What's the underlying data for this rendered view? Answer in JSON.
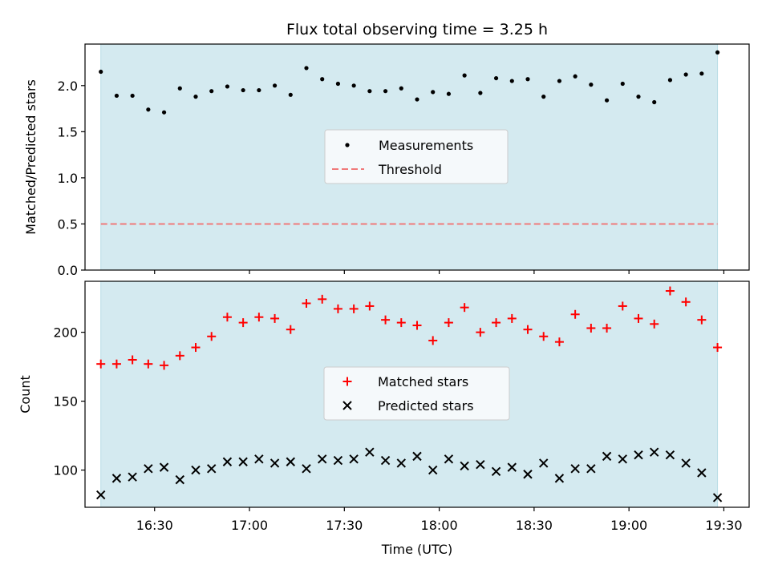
{
  "title": "Flux total observing time = 3.25 h",
  "colors": {
    "observing_span": "#d4eaf0",
    "observing_span_edge": "#b8dde6",
    "measurement": "#000000",
    "threshold": "#f07a7a",
    "matched": "#ff0000",
    "predicted": "#000000",
    "legend_bg": "#f5f9fb",
    "legend_edge": "#cccccc"
  },
  "chart_data": [
    {
      "type": "scatter",
      "name": "ratio-panel",
      "ylabel": "Matched/Predicted stars",
      "xlabel": "",
      "ylim": [
        0,
        2.45
      ],
      "yticks": [
        0.0,
        0.5,
        1.0,
        1.5,
        2.0
      ],
      "ytick_labels": [
        "0.0",
        "0.5",
        "1.0",
        "1.5",
        "2.0"
      ],
      "legend_position": "center",
      "observing_span": [
        "16:13",
        "19:28"
      ],
      "series": [
        {
          "name": "Measurements",
          "marker": "dot",
          "x": [
            "16:13",
            "16:18",
            "16:23",
            "16:28",
            "16:33",
            "16:38",
            "16:43",
            "16:48",
            "16:53",
            "16:58",
            "17:03",
            "17:08",
            "17:13",
            "17:18",
            "17:23",
            "17:28",
            "17:33",
            "17:38",
            "17:43",
            "17:48",
            "17:53",
            "17:58",
            "18:03",
            "18:08",
            "18:13",
            "18:18",
            "18:23",
            "18:28",
            "18:33",
            "18:38",
            "18:43",
            "18:48",
            "18:53",
            "18:58",
            "19:03",
            "19:08",
            "19:13",
            "19:18",
            "19:23",
            "19:28"
          ],
          "y": [
            2.15,
            1.89,
            1.89,
            1.74,
            1.71,
            1.97,
            1.88,
            1.94,
            1.99,
            1.95,
            1.95,
            2.0,
            1.9,
            2.19,
            2.07,
            2.02,
            2.0,
            1.94,
            1.94,
            1.97,
            1.85,
            1.93,
            1.91,
            2.11,
            1.92,
            2.08,
            2.05,
            2.07,
            1.88,
            2.05,
            2.1,
            2.01,
            1.84,
            2.02,
            1.88,
            1.82,
            2.06,
            2.12,
            2.13,
            2.36
          ]
        },
        {
          "name": "Threshold",
          "marker": "dashed-line",
          "y": 0.5
        }
      ]
    },
    {
      "type": "scatter",
      "name": "count-panel",
      "ylabel": "Count",
      "xlabel": "Time (UTC)",
      "ylim": [
        73,
        237
      ],
      "yticks": [
        100,
        150,
        200
      ],
      "ytick_labels": [
        "100",
        "150",
        "200"
      ],
      "xticks": [
        "16:30",
        "17:00",
        "17:30",
        "18:00",
        "18:30",
        "19:00",
        "19:30"
      ],
      "xlim": [
        "16:08",
        "19:38"
      ],
      "legend_position": "center",
      "observing_span": [
        "16:13",
        "19:28"
      ],
      "series": [
        {
          "name": "Matched stars",
          "marker": "plus",
          "x": [
            "16:13",
            "16:18",
            "16:23",
            "16:28",
            "16:33",
            "16:38",
            "16:43",
            "16:48",
            "16:53",
            "16:58",
            "17:03",
            "17:08",
            "17:13",
            "17:18",
            "17:23",
            "17:28",
            "17:33",
            "17:38",
            "17:43",
            "17:48",
            "17:53",
            "17:58",
            "18:03",
            "18:08",
            "18:13",
            "18:18",
            "18:23",
            "18:28",
            "18:33",
            "18:38",
            "18:43",
            "18:48",
            "18:53",
            "18:58",
            "19:03",
            "19:08",
            "19:13",
            "19:18",
            "19:23",
            "19:28"
          ],
          "y": [
            177,
            177,
            180,
            177,
            176,
            183,
            189,
            197,
            211,
            207,
            211,
            210,
            202,
            221,
            224,
            217,
            217,
            219,
            209,
            207,
            205,
            194,
            207,
            218,
            200,
            207,
            210,
            202,
            197,
            193,
            213,
            203,
            203,
            219,
            210,
            206,
            230,
            222,
            209,
            189
          ]
        },
        {
          "name": "Predicted stars",
          "marker": "x",
          "x": [
            "16:13",
            "16:18",
            "16:23",
            "16:28",
            "16:33",
            "16:38",
            "16:43",
            "16:48",
            "16:53",
            "16:58",
            "17:03",
            "17:08",
            "17:13",
            "17:18",
            "17:23",
            "17:28",
            "17:33",
            "17:38",
            "17:43",
            "17:48",
            "17:53",
            "17:58",
            "18:03",
            "18:08",
            "18:13",
            "18:18",
            "18:23",
            "18:28",
            "18:33",
            "18:38",
            "18:43",
            "18:48",
            "18:53",
            "18:58",
            "19:03",
            "19:08",
            "19:13",
            "19:18",
            "19:23",
            "19:28"
          ],
          "y": [
            82,
            94,
            95,
            101,
            102,
            93,
            100,
            101,
            106,
            106,
            108,
            105,
            106,
            101,
            108,
            107,
            108,
            113,
            107,
            105,
            110,
            100,
            108,
            103,
            104,
            99,
            102,
            97,
            105,
            94,
            101,
            101,
            110,
            108,
            111,
            113,
            111,
            105,
            98,
            80
          ]
        }
      ]
    }
  ]
}
